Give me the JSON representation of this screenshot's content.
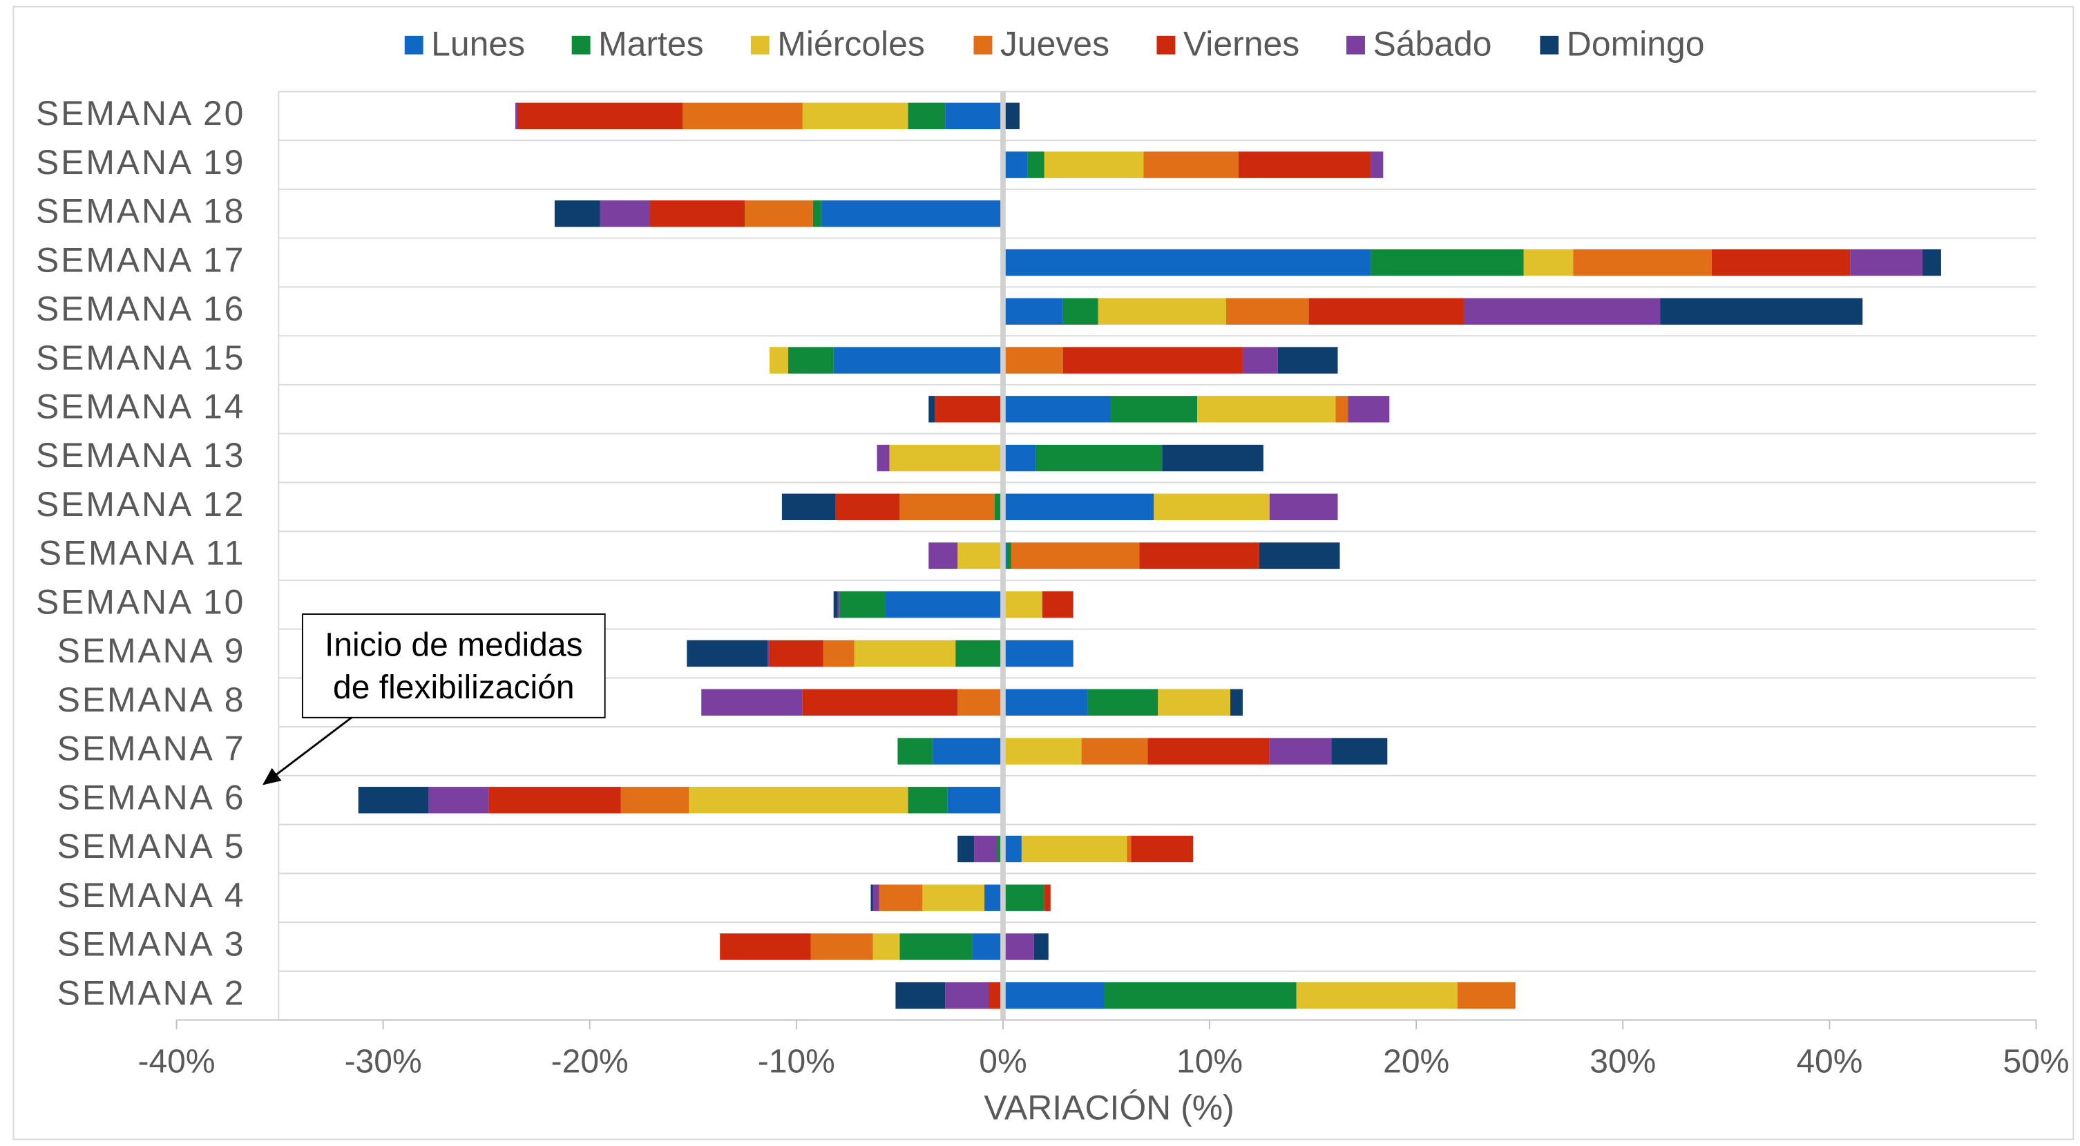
{
  "chart_data": {
    "type": "diverging-stacked-bar",
    "categories": [
      "SEMANA 20",
      "SEMANA 19",
      "SEMANA 18",
      "SEMANA 17",
      "SEMANA 16",
      "SEMANA 15",
      "SEMANA 14",
      "SEMANA 13",
      "SEMANA 12",
      "SEMANA 11",
      "SEMANA 10",
      "SEMANA 9",
      "SEMANA 8",
      "SEMANA 7",
      "SEMANA 6",
      "SEMANA 5",
      "SEMANA 4",
      "SEMANA 3",
      "SEMANA 2"
    ],
    "series": [
      {
        "name": "Lunes",
        "color": "#1068c4",
        "values": [
          -2.8,
          1.2,
          -8.8,
          17.8,
          2.9,
          -8.2,
          5.2,
          1.6,
          7.3,
          0.2,
          -5.7,
          3.4,
          4.1,
          -3.4,
          -2.7,
          0.9,
          -0.9,
          -1.5,
          4.9
        ]
      },
      {
        "name": "Martes",
        "color": "#0e8a3a",
        "values": [
          -1.8,
          0.8,
          -0.4,
          7.4,
          1.7,
          -2.2,
          4.2,
          6.1,
          -0.4,
          0.2,
          -2.2,
          -2.3,
          3.4,
          -1.7,
          -1.9,
          -0.3,
          2.0,
          -3.5,
          9.3
        ]
      },
      {
        "name": "Miércoles",
        "color": "#e0c12b",
        "values": [
          -5.1,
          4.8,
          0,
          2.4,
          6.2,
          -0.9,
          6.7,
          -5.5,
          5.6,
          -2.2,
          1.9,
          -4.9,
          3.5,
          3.8,
          -10.6,
          5.1,
          -3.0,
          -1.3,
          7.8
        ]
      },
      {
        "name": "Jueves",
        "color": "#e06f17",
        "values": [
          -5.8,
          4.6,
          -3.3,
          6.7,
          4.0,
          2.9,
          0.6,
          0,
          -4.6,
          6.2,
          0,
          -1.5,
          -2.2,
          3.2,
          -3.3,
          0.2,
          -2.1,
          -3.0,
          2.8
        ]
      },
      {
        "name": "Viernes",
        "color": "#cc290d",
        "values": [
          -8.0,
          6.4,
          -4.6,
          6.7,
          7.5,
          8.7,
          -3.3,
          0,
          -3.1,
          5.8,
          1.5,
          -2.6,
          -7.5,
          5.9,
          -6.4,
          3.0,
          0.3,
          -4.4,
          -0.7
        ]
      },
      {
        "name": "Sábado",
        "color": "#7a3f9f",
        "values": [
          -0.1,
          0.6,
          -2.4,
          3.5,
          9.5,
          1.7,
          2.0,
          -0.6,
          3.3,
          -1.4,
          -0.1,
          -0.1,
          -4.9,
          3.0,
          -2.9,
          -1.1,
          -0.3,
          1.5,
          -2.1
        ]
      },
      {
        "name": "Domingo",
        "color": "#0d3e6d",
        "values": [
          0.8,
          0,
          -2.2,
          0.9,
          9.8,
          2.9,
          -0.3,
          4.9,
          -2.6,
          3.9,
          -0.2,
          -3.9,
          0.6,
          2.7,
          -3.4,
          -0.8,
          -0.1,
          0.7,
          -2.4
        ]
      }
    ],
    "xlabel": "VARIACIÓN (%)",
    "xlim": [
      -40,
      50
    ],
    "xticks": [
      {
        "value": -40,
        "label": "-40%"
      },
      {
        "value": -30,
        "label": "-30%"
      },
      {
        "value": -20,
        "label": "-20%"
      },
      {
        "value": -10,
        "label": "-10%"
      },
      {
        "value": 0,
        "label": "0%"
      },
      {
        "value": 10,
        "label": "10%"
      },
      {
        "value": 20,
        "label": "20%"
      },
      {
        "value": 30,
        "label": "30%"
      },
      {
        "value": 40,
        "label": "40%"
      },
      {
        "value": 50,
        "label": "50%"
      }
    ],
    "legend": "top",
    "annotation": [
      "Inicio de medidas",
      "de flexibilización"
    ]
  }
}
